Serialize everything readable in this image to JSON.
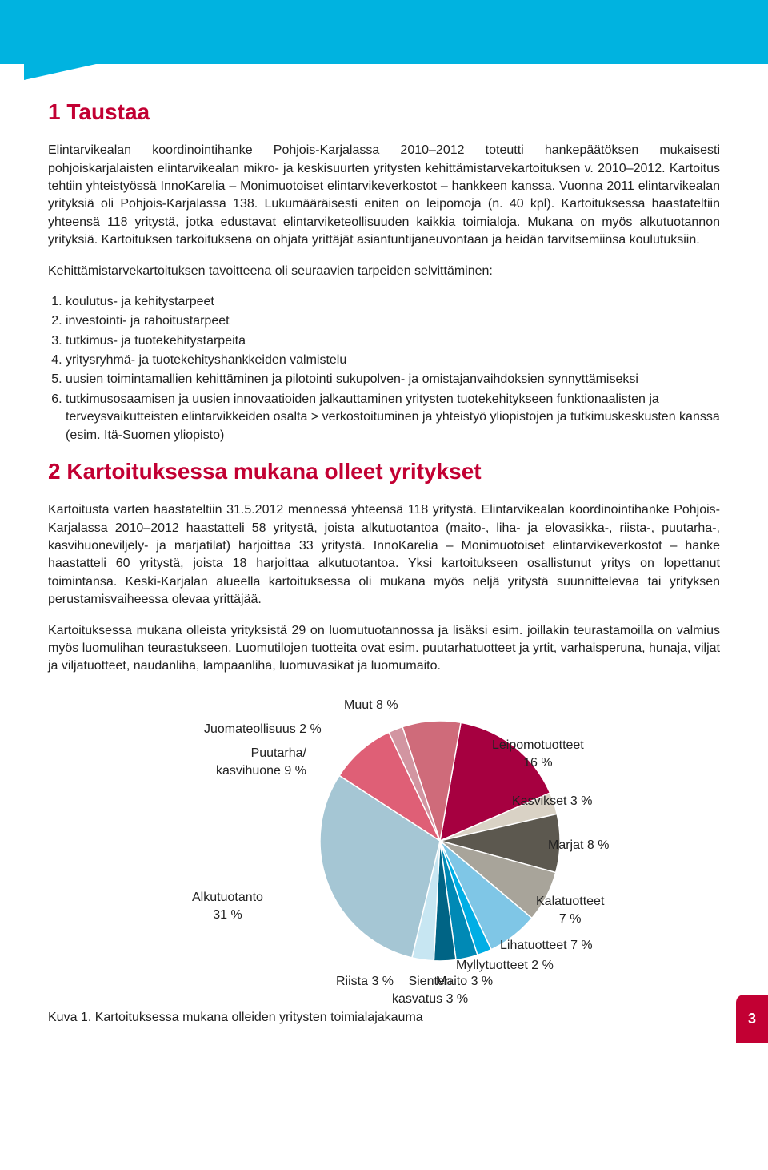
{
  "section1": {
    "heading_num": "1",
    "heading_text": "Taustaa",
    "para1": "Elintarvikealan koordinointihanke Pohjois-Karjalassa 2010–2012 toteutti hankepäätöksen mukaisesti pohjoiskarjalaisten elintarvikealan mikro- ja keskisuurten yritysten kehittämistarvekartoituksen v. 2010–2012. Kartoitus tehtiin yhteistyössä InnoKarelia – Monimuotoiset elintarvikeverkostot – hankkeen kanssa. Vuonna 2011 elintarvikealan yrityksiä oli Pohjois-Karjalassa 138. Lukumääräisesti eniten on leipomoja (n. 40 kpl). Kartoituksessa haastateltiin yhteensä 118 yritystä, jotka edustavat elintarviketeollisuuden kaikkia toimialoja. Mukana on myös alkutuotannon yrityksiä. Kartoituksen tarkoituksena on ohjata yrittäjät asiantuntijaneuvontaan ja heidän tarvitsemiinsa koulutuksiin.",
    "para2": "Kehittämistarvekartoituksen tavoitteena oli seuraavien tarpeiden selvittäminen:",
    "list": [
      "koulutus- ja kehitystarpeet",
      "investointi- ja rahoitustarpeet",
      "tutkimus- ja tuotekehitystarpeita",
      "yritysryhmä- ja tuotekehityshankkeiden valmistelu",
      "uusien toimintamallien kehittäminen ja pilotointi sukupolven- ja omistajanvaihdoksien synnyttämiseksi",
      "tutkimusosaamisen ja uusien innovaatioiden jalkauttaminen yritysten tuotekehitykseen funktionaalisten ja terveysvaikutteisten elintarvikkeiden osalta > verkostoituminen ja yhteistyö yliopistojen ja tutkimuskeskusten kanssa (esim. Itä-Suomen yliopisto)"
    ]
  },
  "section2": {
    "heading_num": "2",
    "heading_text": "Kartoituksessa mukana olleet yritykset",
    "para1": "Kartoitusta varten haastateltiin 31.5.2012 mennessä yhteensä 118 yritystä. Elintarvikealan koordinointihanke Pohjois-Karjalassa 2010–2012 haastatteli 58 yritystä, joista alkutuotantoa (maito-, liha- ja elovasikka-, riista-, puutarha-, kasvihuoneviljely- ja marjatilat) harjoittaa 33 yritystä. InnoKarelia – Monimuotoiset elintarvikeverkostot – hanke haastatteli 60 yritystä, joista 18 harjoittaa alkutuotantoa. Yksi kartoitukseen osallistunut yritys on lopettanut toimintansa. Keski-Karjalan alueella kartoituksessa oli mukana myös neljä yritystä suunnittelevaa tai yrityksen perustamisvaiheessa olevaa yrittäjää.",
    "para2": "Kartoituksessa mukana olleista yrityksistä 29 on luomutuotannossa ja lisäksi esim. joillakin teurastamoilla on valmius myös luomulihan teurastukseen. Luomutilojen tuotteita ovat esim. puutarhatuotteet ja yrtit, varhaisperuna, hunaja, viljat ja viljatuotteet, naudanliha, lampaanliha, luomuvasikat ja luomumaito."
  },
  "chart": {
    "caption": "Kuva 1. Kartoituksessa mukana olleiden yritysten toimialajakauma",
    "type": "pie",
    "slices": [
      {
        "label": "Leipomotuotteet 16 %",
        "value": 16,
        "color": "#a60040"
      },
      {
        "label": "Kasvikset 3 %",
        "value": 3,
        "color": "#d9d2c5"
      },
      {
        "label": "Marjat 8 %",
        "value": 8,
        "color": "#5c584f"
      },
      {
        "label": "Kalatuotteet 7 %",
        "value": 7,
        "color": "#a8a49a"
      },
      {
        "label": "Lihatuotteet 7 %",
        "value": 7,
        "color": "#7fc6e6"
      },
      {
        "label": "Myllytuotteet 2 %",
        "value": 2,
        "color": "#00aee5"
      },
      {
        "label": "Maito 3 %",
        "value": 3,
        "color": "#0089b5"
      },
      {
        "label": "Sienten kasvatus 3 %",
        "value": 3,
        "color": "#006485"
      },
      {
        "label": "Riista 3 %",
        "value": 3,
        "color": "#c7e6f2"
      },
      {
        "label": "Alkutuotanto 31 %",
        "value": 31,
        "color": "#a5c6d4"
      },
      {
        "label": "Puutarha/ kasvihuone 9 %",
        "value": 9,
        "color": "#df5f76"
      },
      {
        "label": "Juomateollisuus 2 %",
        "value": 2,
        "color": "#d295a1"
      },
      {
        "label": "Muut 8 %",
        "value": 8,
        "color": "#cf6b7a"
      }
    ],
    "labels": {
      "muut": "Muut 8 %",
      "juoma": "Juomateollisuus 2 %",
      "puutarha": "Puutarha/\nkasvihuone 9 %",
      "leipo": "Leipomotuotteet\n16 %",
      "kasvik": "Kasvikset 3 %",
      "marjat": "Marjat 8 %",
      "kala": "Kalatuotteet\n7 %",
      "liha": "Lihatuotteet 7 %",
      "mylly": "Myllytuotteet 2 %",
      "maito": "Maito 3 %",
      "sieni": "Sienten\nkasvatus 3 %",
      "riista": "Riista 3 %",
      "alku": "Alkutuotanto\n31 %"
    }
  },
  "page_number": "3"
}
